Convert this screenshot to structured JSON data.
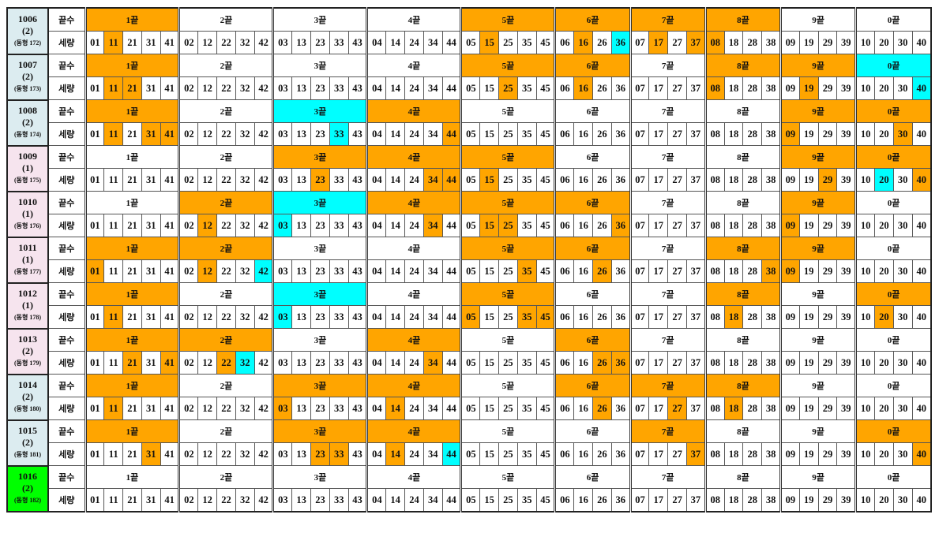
{
  "palette": {
    "orange": "#ffa500",
    "cyan": "#00ffff",
    "white": "#ffffff",
    "id_blue": "#dcecf0",
    "id_pink": "#f6e4ee",
    "id_green": "#00ff00"
  },
  "labels": {
    "ending": "끝수",
    "numbers": "세량"
  },
  "groups": [
    {
      "label": "1끝",
      "numbers": [
        "01",
        "11",
        "21",
        "31",
        "41"
      ]
    },
    {
      "label": "2끝",
      "numbers": [
        "02",
        "12",
        "22",
        "32",
        "42"
      ]
    },
    {
      "label": "3끝",
      "numbers": [
        "03",
        "13",
        "23",
        "33",
        "43"
      ]
    },
    {
      "label": "4끝",
      "numbers": [
        "04",
        "14",
        "24",
        "34",
        "44"
      ]
    },
    {
      "label": "5끝",
      "numbers": [
        "05",
        "15",
        "25",
        "35",
        "45"
      ]
    },
    {
      "label": "6끝",
      "numbers": [
        "06",
        "16",
        "26",
        "36"
      ]
    },
    {
      "label": "7끝",
      "numbers": [
        "07",
        "17",
        "27",
        "37"
      ]
    },
    {
      "label": "8끝",
      "numbers": [
        "08",
        "18",
        "28",
        "38"
      ]
    },
    {
      "label": "9끝",
      "numbers": [
        "09",
        "19",
        "29",
        "39"
      ]
    },
    {
      "label": "0끝",
      "numbers": [
        "10",
        "20",
        "30",
        "40"
      ]
    }
  ],
  "rows": [
    {
      "id": "1006",
      "count": "(2)",
      "sub": "(동형 172)",
      "id_color": "id_blue",
      "group_colors": [
        "orange",
        "white",
        "white",
        "white",
        "orange",
        "orange",
        "orange",
        "orange",
        "white",
        "white"
      ],
      "highlighted": {
        "11": "orange",
        "15": "orange",
        "16": "orange",
        "36": "cyan",
        "17": "orange",
        "37": "orange",
        "08": "orange"
      }
    },
    {
      "id": "1007",
      "count": "(2)",
      "sub": "(동형 173)",
      "id_color": "id_blue",
      "group_colors": [
        "orange",
        "white",
        "white",
        "white",
        "orange",
        "orange",
        "white",
        "orange",
        "orange",
        "cyan"
      ],
      "highlighted": {
        "11": "orange",
        "21": "orange",
        "25": "orange",
        "16": "orange",
        "08": "orange",
        "19": "orange",
        "40": "cyan"
      }
    },
    {
      "id": "1008",
      "count": "(2)",
      "sub": "(동형 174)",
      "id_color": "id_blue",
      "group_colors": [
        "orange",
        "white",
        "cyan",
        "orange",
        "white",
        "white",
        "white",
        "white",
        "orange",
        "orange"
      ],
      "highlighted": {
        "11": "orange",
        "31": "orange",
        "41": "orange",
        "33": "cyan",
        "44": "orange",
        "09": "orange",
        "30": "orange"
      }
    },
    {
      "id": "1009",
      "count": "(1)",
      "sub": "(동형 175)",
      "id_color": "id_pink",
      "group_colors": [
        "white",
        "white",
        "orange",
        "orange",
        "orange",
        "white",
        "white",
        "white",
        "orange",
        "orange"
      ],
      "highlighted": {
        "23": "orange",
        "34": "orange",
        "44": "orange",
        "15": "orange",
        "29": "orange",
        "20": "cyan",
        "40": "orange"
      }
    },
    {
      "id": "1010",
      "count": "(1)",
      "sub": "(동형 176)",
      "id_color": "id_pink",
      "group_colors": [
        "white",
        "orange",
        "cyan",
        "orange",
        "orange",
        "orange",
        "white",
        "white",
        "orange",
        "white"
      ],
      "highlighted": {
        "12": "orange",
        "03": "cyan",
        "34": "orange",
        "15": "orange",
        "25": "orange",
        "36": "orange",
        "09": "orange"
      }
    },
    {
      "id": "1011",
      "count": "(1)",
      "sub": "(동형 177)",
      "id_color": "id_pink",
      "group_colors": [
        "orange",
        "orange",
        "white",
        "white",
        "orange",
        "orange",
        "white",
        "orange",
        "orange",
        "white"
      ],
      "highlighted": {
        "01": "orange",
        "12": "orange",
        "42": "cyan",
        "35": "orange",
        "26": "orange",
        "38": "orange",
        "09": "orange"
      }
    },
    {
      "id": "1012",
      "count": "(1)",
      "sub": "(동형 178)",
      "id_color": "id_pink",
      "group_colors": [
        "orange",
        "white",
        "cyan",
        "white",
        "orange",
        "white",
        "white",
        "orange",
        "white",
        "orange"
      ],
      "highlighted": {
        "11": "orange",
        "03": "cyan",
        "05": "orange",
        "35": "orange",
        "45": "orange",
        "18": "orange",
        "20": "orange"
      }
    },
    {
      "id": "1013",
      "count": "(2)",
      "sub": "(동형 179)",
      "id_color": "id_pink",
      "group_colors": [
        "orange",
        "orange",
        "white",
        "orange",
        "white",
        "orange",
        "white",
        "white",
        "white",
        "white"
      ],
      "highlighted": {
        "21": "orange",
        "41": "orange",
        "22": "orange",
        "32": "cyan",
        "34": "orange",
        "26": "orange",
        "36": "orange"
      }
    },
    {
      "id": "1014",
      "count": "(2)",
      "sub": "(동형 180)",
      "id_color": "id_blue",
      "group_colors": [
        "orange",
        "white",
        "orange",
        "orange",
        "white",
        "orange",
        "orange",
        "orange",
        "white",
        "white"
      ],
      "highlighted": {
        "11": "orange",
        "03": "orange",
        "14": "orange",
        "26": "orange",
        "27": "orange",
        "18": "orange"
      }
    },
    {
      "id": "1015",
      "count": "(2)",
      "sub": "(동형 181)",
      "id_color": "id_blue",
      "group_colors": [
        "orange",
        "white",
        "orange",
        "orange",
        "white",
        "white",
        "orange",
        "white",
        "white",
        "orange"
      ],
      "highlighted": {
        "31": "orange",
        "23": "orange",
        "33": "orange",
        "14": "orange",
        "44": "cyan",
        "37": "orange",
        "40": "orange"
      }
    },
    {
      "id": "1016",
      "count": "(2)",
      "sub": "(동형 182)",
      "id_color": "id_green",
      "group_colors": [
        "white",
        "white",
        "white",
        "white",
        "white",
        "white",
        "white",
        "white",
        "white",
        "white"
      ],
      "highlighted": {}
    }
  ]
}
